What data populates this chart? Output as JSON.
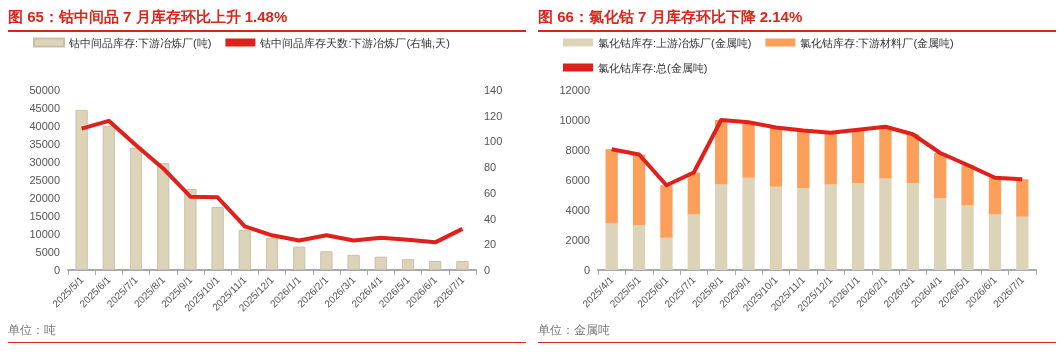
{
  "chart_data": [
    {
      "type": "bar",
      "title": "图 65：钴中间品 7 月库存环比上升 1.48%",
      "categories": [
        "2025/5/1",
        "2025/6/1",
        "2025/7/1",
        "2025/8/1",
        "2025/9/1",
        "2025/10/1",
        "2025/11/1",
        "2025/12/1",
        "2026/1/1",
        "2026/2/1",
        "2026/3/1",
        "2026/4/1",
        "2026/5/1",
        "2026/6/1",
        "2026/7/1"
      ],
      "series": [
        {
          "name": "钴中间品库存:下游冶炼厂(吨)",
          "color": "#ddd3b8",
          "values": [
            44500,
            40000,
            34000,
            29700,
            22500,
            17500,
            11100,
            8900,
            6500,
            5200,
            4200,
            3700,
            3000,
            2500,
            2500
          ]
        },
        {
          "name": "钴中间品库存天数:下游冶炼厂(右轴,天)",
          "type": "line",
          "axis": "y2",
          "color": "#e0201b",
          "values": [
            110,
            116,
            97,
            79,
            57,
            56.5,
            34,
            27,
            23,
            27,
            23,
            25,
            23.5,
            21.5,
            32
          ]
        }
      ],
      "ylim": [
        0,
        50000
      ],
      "yticks": [
        0,
        5000,
        10000,
        15000,
        20000,
        25000,
        30000,
        35000,
        40000,
        45000,
        50000
      ],
      "y2lim": [
        0,
        140
      ],
      "y2ticks": [
        0,
        20,
        40,
        60,
        80,
        100,
        120,
        140
      ],
      "grid": false,
      "legend": "top",
      "marker": "none",
      "annotations": [
        "单位：吨"
      ]
    },
    {
      "type": "bar",
      "title": "图 66：氯化钴 7 月库存环比下降 2.14%",
      "stacked": true,
      "categories": [
        "2025/4/1",
        "2025/5/1",
        "2025/6/1",
        "2025/7/1",
        "2025/8/1",
        "2025/9/1",
        "2025/10/1",
        "2025/11/1",
        "2025/12/1",
        "2026/1/1",
        "2026/2/1",
        "2026/3/1",
        "2026/4/1",
        "2026/5/1",
        "2026/6/1",
        "2026/7/1"
      ],
      "series": [
        {
          "name": "氯化钴库存:上游冶炼厂(金属吨)",
          "color": "#ddd3b8",
          "values": [
            3100,
            3000,
            2150,
            3700,
            5700,
            6150,
            5550,
            5450,
            5700,
            5800,
            6100,
            5800,
            4800,
            4300,
            3700,
            3550
          ]
        },
        {
          "name": "氯化钴库存:下游材料厂(金属吨)",
          "color": "#fb9f5a",
          "values": [
            4950,
            4700,
            3500,
            2800,
            4300,
            3700,
            3950,
            3800,
            3450,
            3550,
            3450,
            3250,
            3000,
            2700,
            2450,
            2500
          ]
        },
        {
          "name": "氯化钴库存:总(金属吨)",
          "type": "line",
          "color": "#e0201b",
          "values": [
            8050,
            7700,
            5650,
            6500,
            10000,
            9850,
            9500,
            9300,
            9150,
            9350,
            9550,
            9050,
            7800,
            7000,
            6150,
            6050
          ]
        }
      ],
      "ylim": [
        0,
        12000
      ],
      "yticks": [
        0,
        2000,
        4000,
        6000,
        8000,
        10000,
        12000
      ],
      "grid": false,
      "legend": "top",
      "marker": "none",
      "annotations": [
        "单位：金属吨"
      ]
    }
  ]
}
